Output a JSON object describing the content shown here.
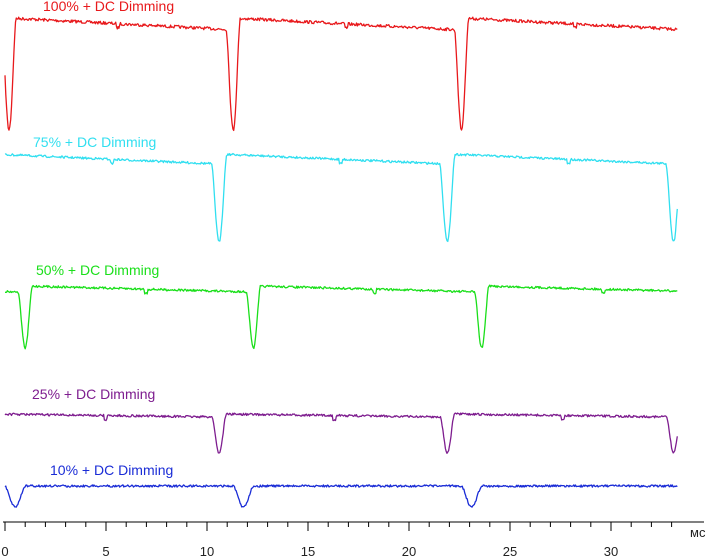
{
  "chart_data": {
    "type": "line",
    "xlabel": "мс",
    "xlim": [
      0,
      33.5
    ],
    "x_ticks": [
      0,
      5,
      10,
      15,
      20,
      25,
      30
    ],
    "series": [
      {
        "name": "100% + DC Dimming",
        "color": "#e8191c",
        "period_ms": 11.3,
        "dip_times_ms": [
          0.2,
          11.3,
          22.6
        ],
        "baseline_level": 0.94,
        "dip_level": 0.0,
        "step_times_ms": [
          5.6,
          16.9,
          28.2
        ]
      },
      {
        "name": "75% + DC Dimming",
        "color": "#31dff0",
        "period_ms": 11.3,
        "dip_times_ms": [
          10.6,
          21.9,
          33.1
        ],
        "baseline_level": 0.9,
        "dip_level": 0.0,
        "step_times_ms": [
          5.3,
          16.6,
          27.9
        ]
      },
      {
        "name": "50% + DC Dimming",
        "color": "#1adf1a",
        "period_ms": 11.3,
        "dip_times_ms": [
          1.0,
          12.3,
          23.6
        ],
        "baseline_level": 0.85,
        "dip_level": 0.0,
        "step_times_ms": [
          7.0,
          18.3,
          29.6
        ]
      },
      {
        "name": "25% + DC Dimming",
        "color": "#7e1d8f",
        "period_ms": 11.3,
        "dip_times_ms": [
          10.6,
          21.9,
          33.1
        ],
        "baseline_level": 0.85,
        "dip_level": 0.0,
        "step_times_ms": [
          5.0,
          16.3,
          27.6
        ]
      },
      {
        "name": "10% + DC Dimming",
        "color": "#1a2cd6",
        "period_ms": 11.3,
        "dip_times_ms": [
          0.5,
          11.8,
          23.1
        ],
        "baseline_level": 0.85,
        "dip_level": 0.0,
        "step_times_ms": []
      }
    ]
  }
}
